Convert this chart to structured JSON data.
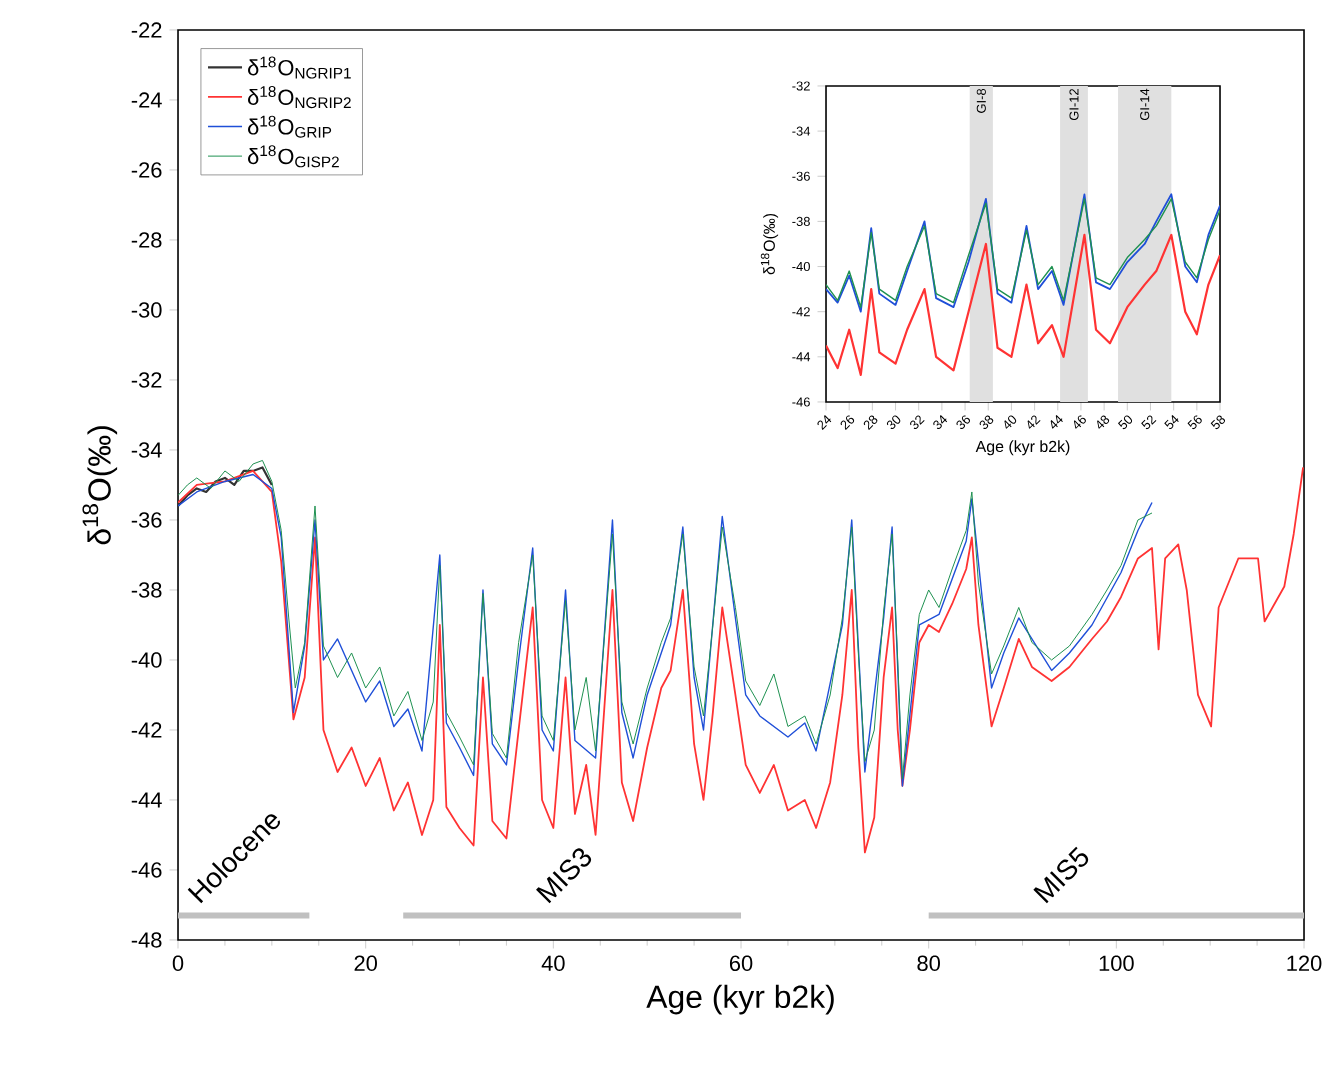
{
  "chart_data": [
    {
      "type": "line",
      "xlabel": "Age (kyr b2k)",
      "ylabel": "δ$^{18}$O(‰)",
      "xlim": [
        0,
        120
      ],
      "ylim": [
        -48,
        -22
      ],
      "xticks": [
        0,
        20,
        40,
        60,
        80,
        100,
        120
      ],
      "yticks": [
        -48,
        -46,
        -44,
        -42,
        -40,
        -38,
        -36,
        -34,
        -32,
        -30,
        -28,
        -26,
        -24,
        -22
      ],
      "legend": "top left",
      "series": [
        {
          "name": "δ$^{18}$O$_{NGRIP1}$",
          "color": "#333333",
          "x": [
            0,
            1,
            2,
            3,
            4,
            5,
            6,
            7,
            8,
            9,
            10
          ],
          "values": [
            -35.6,
            -35.3,
            -35.1,
            -35.2,
            -34.9,
            -34.8,
            -35.0,
            -34.6,
            -34.6,
            -34.5,
            -35.0
          ]
        },
        {
          "name": "δ$^{18}$O$_{NGRIP2}$",
          "color": "#ff3333",
          "x": [
            0,
            2,
            5,
            8,
            10,
            11,
            12.3,
            13.5,
            14.6,
            15.5,
            17,
            18.5,
            20,
            21.5,
            23,
            24.5,
            26,
            27.2,
            27.9,
            28.6,
            30,
            31.5,
            32.5,
            33.5,
            35,
            36.3,
            37.8,
            38.8,
            40,
            41.3,
            42.3,
            43.5,
            44.5,
            46.3,
            47.3,
            48.5,
            50,
            51.5,
            52.5,
            53.8,
            55,
            56,
            57,
            58,
            59.4,
            60.5,
            62,
            63.5,
            65,
            66.8,
            68,
            69.5,
            70.8,
            71.8,
            72.5,
            73.2,
            74.2,
            75.2,
            76.1,
            76.7,
            77.2,
            78,
            79,
            80,
            81.1,
            82.5,
            84,
            84.6,
            85.3,
            86.7,
            88,
            89.6,
            91,
            93.1,
            95,
            97.4,
            99,
            100.5,
            102.3,
            103.8,
            104.5,
            105.2,
            106.6,
            107.5,
            108.7,
            110.1,
            110.9,
            113,
            115.1,
            115.8,
            117.9,
            118.9,
            119.9
          ],
          "values": [
            -35.5,
            -35.0,
            -34.9,
            -34.6,
            -35.2,
            -37.2,
            -41.7,
            -40.5,
            -36.5,
            -42.0,
            -43.2,
            -42.5,
            -43.6,
            -42.8,
            -44.3,
            -43.5,
            -45.0,
            -44.0,
            -39.0,
            -44.2,
            -44.8,
            -45.3,
            -40.5,
            -44.6,
            -45.1,
            -42.0,
            -38.5,
            -44.0,
            -44.8,
            -40.5,
            -44.4,
            -43.0,
            -45.0,
            -38.0,
            -43.5,
            -44.6,
            -42.5,
            -40.8,
            -40.3,
            -38.0,
            -42.4,
            -44.0,
            -41.5,
            -38.5,
            -41.0,
            -43.0,
            -43.8,
            -43.0,
            -44.3,
            -44.0,
            -44.8,
            -43.5,
            -41.0,
            -38.0,
            -42.5,
            -45.5,
            -44.5,
            -40.5,
            -38.5,
            -42.0,
            -43.6,
            -42.0,
            -39.5,
            -39.0,
            -39.2,
            -38.4,
            -37.4,
            -36.5,
            -39.0,
            -41.9,
            -40.8,
            -39.4,
            -40.2,
            -40.6,
            -40.2,
            -39.4,
            -38.9,
            -38.2,
            -37.1,
            -36.8,
            -39.7,
            -37.1,
            -36.7,
            -38.0,
            -41.0,
            -41.9,
            -38.5,
            -37.1,
            -37.1,
            -38.9,
            -37.9,
            -36.4,
            -34.5
          ]
        },
        {
          "name": "δ$^{18}$O$_{GRIP}$",
          "color": "#1f4fd8",
          "x": [
            0,
            2,
            5,
            8,
            10,
            11,
            12.3,
            13.5,
            14.6,
            15.5,
            17,
            18.5,
            20,
            21.5,
            23,
            24.5,
            26,
            27.9,
            28.6,
            30,
            31.5,
            32.5,
            33.5,
            35,
            36.3,
            37.8,
            38.8,
            40,
            41.3,
            42.3,
            44.5,
            46.3,
            47.3,
            48.5,
            50,
            52.5,
            53.8,
            55,
            56,
            58,
            59.4,
            60.5,
            62,
            65,
            66.8,
            68,
            70.8,
            71.8,
            73.2,
            75.2,
            76.1,
            77.2,
            79,
            81.1,
            84,
            84.6,
            86.7,
            88,
            89.6,
            93.1,
            95,
            97.4,
            100.5,
            102.3,
            103.8
          ],
          "values": [
            -35.6,
            -35.2,
            -34.9,
            -34.7,
            -35.1,
            -36.5,
            -41.5,
            -39.6,
            -36.0,
            -40.0,
            -39.4,
            -40.3,
            -41.2,
            -40.6,
            -41.9,
            -41.4,
            -42.6,
            -37.0,
            -41.8,
            -42.5,
            -43.3,
            -38.0,
            -42.4,
            -43.0,
            -40.0,
            -36.8,
            -42.0,
            -42.6,
            -38.0,
            -42.3,
            -42.8,
            -36.0,
            -41.5,
            -42.8,
            -41.0,
            -39.0,
            -36.2,
            -40.5,
            -42.0,
            -35.9,
            -38.8,
            -41.0,
            -41.6,
            -42.2,
            -41.8,
            -42.6,
            -39.0,
            -36.0,
            -43.2,
            -38.8,
            -36.2,
            -43.6,
            -39.0,
            -38.7,
            -36.6,
            -35.4,
            -40.8,
            -39.8,
            -38.8,
            -40.3,
            -39.8,
            -39.0,
            -37.5,
            -36.3,
            -35.5
          ]
        },
        {
          "name": "δ$^{18}$O$_{GISP2}$",
          "color": "#1e9150",
          "x": [
            0,
            1,
            2,
            3.5,
            5,
            6.5,
            8,
            9,
            10,
            11,
            11.8,
            12.5,
            13.5,
            14.6,
            15.5,
            17,
            18.5,
            20,
            21.5,
            23,
            24.5,
            26,
            27.2,
            27.9,
            28.6,
            30,
            31.5,
            32.5,
            33.5,
            35,
            36.3,
            37.8,
            38.8,
            40,
            41.3,
            42.3,
            43.5,
            44.5,
            46.3,
            47.3,
            48.5,
            50,
            51.5,
            52.5,
            53.8,
            55,
            56,
            57,
            58,
            59.4,
            60.5,
            62,
            63.5,
            65,
            66.8,
            68,
            69.5,
            70.8,
            71.8,
            72.5,
            73.2,
            74.2,
            75.2,
            76.1,
            76.7,
            77.2,
            78,
            79,
            80,
            81.1,
            82.5,
            84,
            84.6,
            85.3,
            86.7,
            88,
            89.6,
            91,
            93.1,
            95,
            97.4,
            99,
            100.5,
            102.3,
            103.8
          ],
          "values": [
            -35.3,
            -35.0,
            -34.8,
            -35.1,
            -34.6,
            -34.9,
            -34.4,
            -34.3,
            -34.9,
            -36.3,
            -38.8,
            -40.8,
            -39.5,
            -35.6,
            -39.6,
            -40.5,
            -39.8,
            -40.8,
            -40.2,
            -41.6,
            -40.9,
            -42.3,
            -41.2,
            -37.3,
            -41.5,
            -42.2,
            -43.0,
            -38.1,
            -42.1,
            -42.8,
            -39.5,
            -37.0,
            -41.6,
            -42.3,
            -38.3,
            -42.0,
            -40.5,
            -42.6,
            -36.4,
            -41.2,
            -42.4,
            -40.8,
            -39.5,
            -38.8,
            -36.4,
            -40.2,
            -41.6,
            -39.0,
            -36.2,
            -38.5,
            -40.6,
            -41.3,
            -40.4,
            -41.9,
            -41.6,
            -42.4,
            -41.0,
            -38.8,
            -36.2,
            -39.8,
            -42.9,
            -42.0,
            -38.6,
            -36.4,
            -40.0,
            -43.4,
            -41.0,
            -38.7,
            -38.0,
            -38.5,
            -37.4,
            -36.3,
            -35.2,
            -37.8,
            -40.4,
            -39.6,
            -38.5,
            -39.5,
            -40.0,
            -39.6,
            -38.7,
            -38.0,
            -37.3,
            -36.0,
            -35.8
          ]
        },
        {
          "color": "#c0c0c0",
          "x": [
            0,
            14
          ],
          "values": [
            -47.3,
            -47.3
          ]
        },
        {
          "color": "#c0c0c0",
          "x": [
            24,
            60
          ],
          "values": [
            -47.3,
            -47.3
          ]
        },
        {
          "color": "#c0c0c0",
          "x": [
            80,
            120
          ],
          "values": [
            -47.3,
            -47.3
          ]
        }
      ],
      "annotations": [
        "Holocene",
        "MIS3",
        "MIS5"
      ]
    },
    {
      "type": "line",
      "xlabel": "Age (kyr b2k)",
      "ylabel": "δ$^{18}$O(‰)",
      "xlim": [
        24,
        58
      ],
      "ylim": [
        -46,
        -32
      ],
      "xticks": [
        24,
        26,
        28,
        30,
        32,
        34,
        36,
        38,
        40,
        42,
        44,
        46,
        48,
        50,
        52,
        54,
        56,
        58
      ],
      "yticks": [
        -46,
        -44,
        -42,
        -40,
        -38,
        -36,
        -34,
        -32
      ],
      "bands": [
        {
          "axis": "x",
          "from": 36.4,
          "to": 38.4,
          "label": "GI-8",
          "color": "#e0e0e0"
        },
        {
          "axis": "x",
          "from": 44.2,
          "to": 46.6,
          "label": "GI-12",
          "color": "#e0e0e0"
        },
        {
          "axis": "x",
          "from": 49.2,
          "to": 53.8,
          "label": "GI-14",
          "color": "#e0e0e0"
        }
      ],
      "series": [
        {
          "color": "#ff3333",
          "x": [
            24,
            25,
            26,
            27,
            27.9,
            28.6,
            30,
            31,
            32.5,
            33.5,
            35,
            36.3,
            37.8,
            38.8,
            40,
            41.3,
            42.3,
            43.5,
            44.5,
            46.3,
            47.3,
            48.5,
            50,
            51.5,
            52.5,
            53.8,
            55,
            56,
            57,
            58
          ],
          "values": [
            -43.5,
            -44.5,
            -42.8,
            -44.8,
            -41.0,
            -43.8,
            -44.3,
            -42.8,
            -41.0,
            -44.0,
            -44.6,
            -42.0,
            -39.0,
            -43.6,
            -44.0,
            -40.8,
            -43.4,
            -42.6,
            -44.0,
            -38.6,
            -42.8,
            -43.4,
            -41.8,
            -40.8,
            -40.2,
            -38.6,
            -42.0,
            -43.0,
            -40.8,
            -39.5
          ]
        },
        {
          "color": "#1f4fd8",
          "x": [
            24,
            25,
            26,
            27,
            27.9,
            28.6,
            30,
            31,
            32.5,
            33.5,
            35,
            36.3,
            37.8,
            38.8,
            40,
            41.3,
            42.3,
            43.5,
            44.5,
            46.3,
            47.3,
            48.5,
            50,
            51.5,
            52.5,
            53.8,
            55,
            56,
            57,
            58
          ],
          "values": [
            -41.0,
            -41.6,
            -40.4,
            -42.0,
            -38.3,
            -41.2,
            -41.7,
            -40.2,
            -38.0,
            -41.4,
            -41.8,
            -39.8,
            -37.0,
            -41.2,
            -41.6,
            -38.2,
            -41.0,
            -40.2,
            -41.7,
            -36.8,
            -40.7,
            -41.0,
            -39.8,
            -39.0,
            -38.0,
            -36.8,
            -40.0,
            -40.7,
            -38.6,
            -37.3
          ]
        },
        {
          "color": "#1e9150",
          "x": [
            24,
            25,
            26,
            27,
            27.9,
            28.6,
            30,
            31,
            32.5,
            33.5,
            35,
            36.3,
            37.8,
            38.8,
            40,
            41.3,
            42.3,
            43.5,
            44.5,
            46.3,
            47.3,
            48.5,
            50,
            51.5,
            52.5,
            53.8,
            55,
            56,
            57,
            58
          ],
          "values": [
            -40.8,
            -41.5,
            -40.2,
            -41.8,
            -38.5,
            -41.0,
            -41.5,
            -40.0,
            -38.2,
            -41.2,
            -41.6,
            -39.5,
            -37.2,
            -41.0,
            -41.4,
            -38.4,
            -40.8,
            -40.0,
            -41.5,
            -37.0,
            -40.5,
            -40.8,
            -39.6,
            -38.8,
            -38.2,
            -37.0,
            -39.8,
            -40.5,
            -38.8,
            -37.5
          ]
        }
      ]
    }
  ]
}
